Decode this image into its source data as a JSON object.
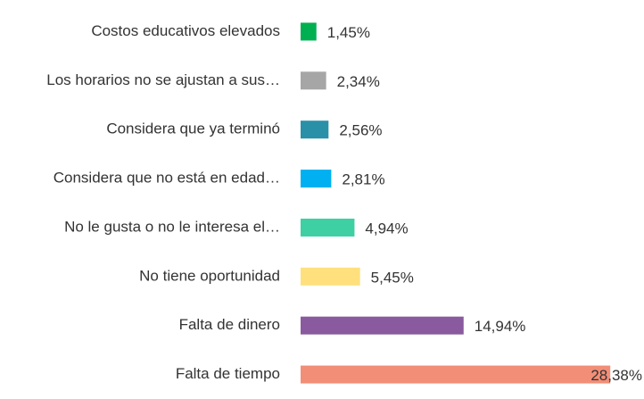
{
  "chart_data": {
    "type": "bar",
    "orientation": "horizontal",
    "categories": [
      "Costos educativos elevados",
      "Los horarios no se ajustan a sus…",
      "Considera que ya terminó",
      "Considera que no está en edad…",
      "No le gusta o no le interesa el…",
      "No tiene oportunidad",
      "Falta de dinero",
      "Falta de tiempo"
    ],
    "values": [
      1.45,
      2.34,
      2.56,
      2.81,
      4.94,
      5.45,
      14.94,
      28.38
    ],
    "value_labels": [
      "1,45%",
      "2,34%",
      "2,56%",
      "2,81%",
      "4,94%",
      "5,45%",
      "14,94%",
      "28,38%"
    ],
    "colors": [
      "#00b050",
      "#a6a6a6",
      "#2990a8",
      "#00b0f0",
      "#3ecfa3",
      "#ffe07d",
      "#8a5a9e",
      "#f28e77"
    ],
    "xlim": [
      0,
      30
    ]
  }
}
